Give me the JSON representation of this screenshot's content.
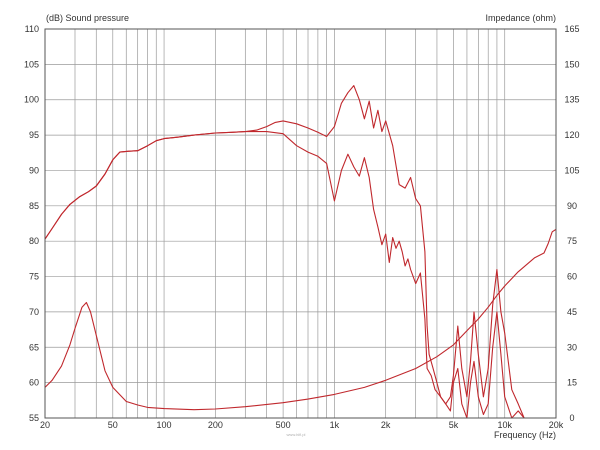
{
  "chart_data": {
    "type": "line",
    "left_axis_title": "(dB)  Sound pressure",
    "right_axis_title": "Impedance  (ohm)",
    "xlabel": "Frequency  (Hz)",
    "x_scale": "log",
    "xlim": [
      20,
      20000
    ],
    "ylim_left": [
      55,
      110
    ],
    "ylim_right": [
      0,
      165
    ],
    "x_ticks": [
      {
        "value": 20,
        "label": "20"
      },
      {
        "value": 50,
        "label": "50"
      },
      {
        "value": 100,
        "label": "100"
      },
      {
        "value": 200,
        "label": "200"
      },
      {
        "value": 500,
        "label": "500"
      },
      {
        "value": 1000,
        "label": "1k"
      },
      {
        "value": 2000,
        "label": "2k"
      },
      {
        "value": 5000,
        "label": "5k"
      },
      {
        "value": 10000,
        "label": "10k"
      },
      {
        "value": 20000,
        "label": "20k"
      }
    ],
    "y_ticks_left": [
      "55",
      "60",
      "65",
      "70",
      "75",
      "80",
      "85",
      "90",
      "95",
      "100",
      "105",
      "110"
    ],
    "y_ticks_right": [
      "0",
      "15",
      "30",
      "45",
      "60",
      "75",
      "90",
      "105",
      "120",
      "135",
      "150",
      "165"
    ],
    "grid": true,
    "line_color": "#c0282d",
    "series": [
      {
        "axis": "left",
        "x": [
          20,
          22,
          25,
          28,
          32,
          36,
          40,
          45,
          50,
          55,
          60,
          70,
          80,
          90,
          100,
          120,
          150,
          200,
          250,
          300,
          400,
          500,
          600,
          700,
          800,
          900,
          1000,
          1100,
          1200,
          1300,
          1400,
          1500,
          1600,
          1700,
          1800,
          1900,
          2000,
          2100,
          2200,
          2300,
          2400,
          2500,
          2600,
          2700,
          2800,
          3000,
          3200,
          3400,
          3500,
          3700,
          3900,
          4200,
          4500,
          4800,
          5000,
          5300,
          5600,
          6000,
          6300,
          6600,
          7000,
          7500,
          8000,
          8500,
          9000,
          9500,
          10000,
          11000,
          12000,
          13000,
          14000
        ],
        "y": [
          80.3,
          81.8,
          83.8,
          85.2,
          86.3,
          87.0,
          87.8,
          89.5,
          91.5,
          92.6,
          92.7,
          92.8,
          93.5,
          94.2,
          94.5,
          94.7,
          95.0,
          95.3,
          95.4,
          95.5,
          95.5,
          95.2,
          93.5,
          92.6,
          92.0,
          91.0,
          85.7,
          90.0,
          92.3,
          90.5,
          89.2,
          91.8,
          89.0,
          84.5,
          82.0,
          79.5,
          81.0,
          77.0,
          80.5,
          79.0,
          80.0,
          78.5,
          76.5,
          77.5,
          76.0,
          74.0,
          75.5,
          69.0,
          62.0,
          61.0,
          59.0,
          58.0,
          57.0,
          56.0,
          60.0,
          62.0,
          57.0,
          55.0,
          60.0,
          63.0,
          58.0,
          55.5,
          57.0,
          65.0,
          70.0,
          64.0,
          58.0,
          55.0,
          56.0,
          55.0,
          55.0
        ]
      },
      {
        "axis": "left",
        "x": [
          20,
          22,
          25,
          28,
          32,
          36,
          40,
          45,
          50,
          55,
          60,
          70,
          80,
          90,
          100,
          120,
          150,
          200,
          250,
          300,
          350,
          400,
          450,
          500,
          600,
          700,
          800,
          900,
          1000,
          1100,
          1200,
          1300,
          1400,
          1500,
          1600,
          1700,
          1800,
          1900,
          2000,
          2200,
          2400,
          2600,
          2800,
          3000,
          3200,
          3400,
          3500,
          3600,
          3800,
          4000,
          4200,
          4500,
          4800,
          5000,
          5300,
          5600,
          6000,
          6300,
          6600,
          7000,
          7500,
          8000,
          8500,
          9000,
          9500,
          10000,
          11000,
          12000,
          13000
        ],
        "y": [
          80.3,
          81.8,
          83.8,
          85.2,
          86.3,
          87.0,
          87.8,
          89.5,
          91.5,
          92.6,
          92.7,
          92.8,
          93.5,
          94.2,
          94.5,
          94.7,
          95.0,
          95.3,
          95.4,
          95.5,
          95.7,
          96.2,
          96.8,
          97.0,
          96.6,
          96.0,
          95.4,
          94.8,
          96.2,
          99.5,
          101.0,
          102.0,
          100.0,
          97.3,
          99.8,
          96.0,
          98.5,
          95.5,
          97.0,
          93.5,
          88.0,
          87.5,
          89.0,
          86.0,
          85.0,
          78.5,
          68.0,
          64.0,
          62.0,
          60.0,
          58.0,
          57.0,
          58.0,
          61.0,
          68.0,
          62.0,
          58.0,
          63.0,
          70.0,
          64.0,
          58.0,
          62.0,
          71.0,
          76.0,
          70.0,
          67.0,
          59.0,
          57.0,
          55.0
        ]
      },
      {
        "axis": "right",
        "x": [
          20,
          22,
          25,
          28,
          30,
          33,
          35,
          37,
          40,
          45,
          50,
          60,
          70,
          80,
          100,
          150,
          200,
          300,
          500,
          700,
          1000,
          1500,
          2000,
          3000,
          4000,
          5000,
          6000,
          7000,
          8000,
          9000,
          10000,
          12000,
          15000,
          17000,
          18000,
          19000,
          20000
        ],
        "y": [
          13,
          16,
          22,
          31,
          38,
          47,
          49,
          45,
          35,
          20,
          13,
          7.0,
          5.5,
          4.5,
          4.0,
          3.5,
          3.8,
          4.8,
          6.5,
          8.0,
          10.0,
          13.0,
          16.0,
          21.0,
          26.0,
          31.0,
          37.0,
          42.0,
          47.0,
          52.0,
          56.0,
          62.0,
          68.0,
          70.0,
          74.0,
          79.0,
          80.0
        ]
      }
    ]
  },
  "footer": {
    "watermark": "www.hifi.pl"
  }
}
